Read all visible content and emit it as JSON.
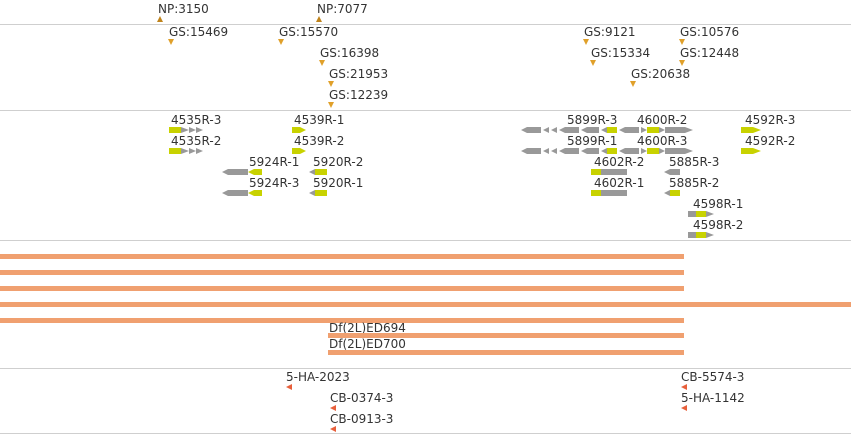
{
  "colors": {
    "insertion_marker": "#e0a02a",
    "np_marker": "#c0841c",
    "transcript_gray": "#999999",
    "transcript_yellow": "#c8d200",
    "deletion_bar": "#f0a070",
    "cb_marker": "#e8603c",
    "separator": "#cfcfcf"
  },
  "np_track": {
    "items": [
      {
        "label": "NP:3150"
      },
      {
        "label": "NP:7077"
      }
    ]
  },
  "gs_track": {
    "items": [
      {
        "label": "GS:15469"
      },
      {
        "label": "GS:15570"
      },
      {
        "label": "GS:16398"
      },
      {
        "label": "GS:21953"
      },
      {
        "label": "GS:12239"
      },
      {
        "label": "GS:9121"
      },
      {
        "label": "GS:15334"
      },
      {
        "label": "GS:10576"
      },
      {
        "label": "GS:12448"
      },
      {
        "label": "GS:20638"
      }
    ]
  },
  "rnai_track": {
    "items": [
      {
        "label": "4535R-3"
      },
      {
        "label": "4535R-2"
      },
      {
        "label": "4539R-1"
      },
      {
        "label": "4539R-2"
      },
      {
        "label": "5924R-1"
      },
      {
        "label": "5920R-2"
      },
      {
        "label": "5924R-3"
      },
      {
        "label": "5920R-1"
      },
      {
        "label": "5899R-3"
      },
      {
        "label": "4600R-2"
      },
      {
        "label": "4592R-3"
      },
      {
        "label": "5899R-1"
      },
      {
        "label": "4600R-3"
      },
      {
        "label": "4592R-2"
      },
      {
        "label": "4602R-2"
      },
      {
        "label": "5885R-3"
      },
      {
        "label": "4602R-1"
      },
      {
        "label": "5885R-2"
      },
      {
        "label": "4598R-1"
      },
      {
        "label": "4598R-2"
      }
    ]
  },
  "deletion_track": {
    "items": [
      {
        "label": ""
      },
      {
        "label": ""
      },
      {
        "label": ""
      },
      {
        "label": ""
      },
      {
        "label": ""
      },
      {
        "label": "Df(2L)ED694"
      },
      {
        "label": "Df(2L)ED700"
      }
    ]
  },
  "cb_track": {
    "items": [
      {
        "label": "5-HA-2023"
      },
      {
        "label": "CB-0374-3"
      },
      {
        "label": "CB-0913-3"
      },
      {
        "label": "CB-5574-3"
      },
      {
        "label": "5-HA-1142"
      }
    ]
  }
}
